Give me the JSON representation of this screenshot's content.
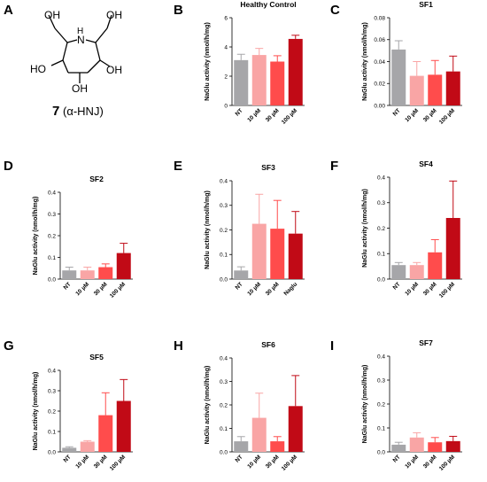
{
  "compound": {
    "panel_label": "A",
    "number": "7",
    "name_suffix": "(α-HNJ)",
    "atoms": {
      "oh1": "OH",
      "oh2": "OH",
      "n": "N",
      "h": "H",
      "oh3": "HO",
      "oh4": "OH",
      "oh5": "OH"
    }
  },
  "colors": {
    "nt": "#a6a6a9",
    "c10": "#f9a5a5",
    "c30": "#ff4c4c",
    "c100": "#c10a16"
  },
  "chart_data": [
    {
      "label": "B",
      "type": "bar",
      "title": "Healthy Control",
      "ylabel": "NaGlu activity (nmol/h/mg)",
      "ylim": [
        0,
        6
      ],
      "yticks": [
        "0",
        "2",
        "4",
        "6"
      ],
      "categories": [
        "NT",
        "10 µM",
        "30 µM",
        "100 µM"
      ],
      "values": [
        3.1,
        3.45,
        3.0,
        4.55
      ],
      "errors": [
        0.4,
        0.45,
        0.4,
        0.25
      ]
    },
    {
      "label": "C",
      "type": "bar",
      "title": "SF1",
      "ylabel": "NaGlu activity (nmol/h/mg)",
      "ylim": [
        0,
        0.08
      ],
      "yticks": [
        "0.00",
        "0.02",
        "0.04",
        "0.06",
        "0.08"
      ],
      "categories": [
        "NT",
        "10 µM",
        "30 µM",
        "100 µM"
      ],
      "values": [
        0.051,
        0.027,
        0.028,
        0.031
      ],
      "errors": [
        0.008,
        0.013,
        0.013,
        0.014
      ]
    },
    {
      "label": "D",
      "type": "bar",
      "title": "SF2",
      "ylabel": "NaGlu activity (nmol/h/mg)",
      "ylim": [
        0,
        0.4
      ],
      "yticks": [
        "0.0",
        "0.1",
        "0.2",
        "0.3",
        "0.4"
      ],
      "categories": [
        "NT",
        "10 µM",
        "30 µM",
        "100 µM"
      ],
      "values": [
        0.04,
        0.04,
        0.055,
        0.12
      ],
      "errors": [
        0.015,
        0.015,
        0.015,
        0.045
      ]
    },
    {
      "label": "E",
      "type": "bar",
      "title": "SF3",
      "ylabel": "NaGlu activity (nmol/h/mg)",
      "ylim": [
        0,
        0.4
      ],
      "yticks": [
        "0.0",
        "0.1",
        "0.2",
        "0.3",
        "0.4"
      ],
      "categories": [
        "NT",
        "10 µM",
        "30 µM",
        "Naglu"
      ],
      "values": [
        0.035,
        0.225,
        0.205,
        0.185
      ],
      "errors": [
        0.015,
        0.12,
        0.115,
        0.09
      ]
    },
    {
      "label": "F",
      "type": "bar",
      "title": "SF4",
      "ylabel": "NaGlu activity (nmol/h/mg)",
      "ylim": [
        0,
        0.4
      ],
      "yticks": [
        "0.0",
        "0.1",
        "0.2",
        "0.3",
        "0.4"
      ],
      "categories": [
        "NT",
        "10 µM",
        "30 µM",
        "100 µM"
      ],
      "values": [
        0.055,
        0.055,
        0.105,
        0.24
      ],
      "errors": [
        0.01,
        0.01,
        0.05,
        0.145
      ]
    },
    {
      "label": "G",
      "type": "bar",
      "title": "SF5",
      "ylabel": "NaGlu activity (nmol/h/mg)",
      "ylim": [
        0,
        0.4
      ],
      "yticks": [
        "0.0",
        "0.1",
        "0.2",
        "0.3",
        "0.4"
      ],
      "categories": [
        "NT",
        "10 µM",
        "30 µM",
        "100 µM"
      ],
      "values": [
        0.02,
        0.05,
        0.18,
        0.25
      ],
      "errors": [
        0.005,
        0.005,
        0.11,
        0.105
      ]
    },
    {
      "label": "H",
      "type": "bar",
      "title": "SF6",
      "ylabel": "NaGlu activity (nmol/h/mg)",
      "ylim": [
        0,
        0.4
      ],
      "yticks": [
        "0.0",
        "0.1",
        "0.2",
        "0.3",
        "0.4"
      ],
      "categories": [
        "NT",
        "10 µM",
        "30 µM",
        "100 µM"
      ],
      "values": [
        0.045,
        0.145,
        0.045,
        0.195
      ],
      "errors": [
        0.02,
        0.105,
        0.02,
        0.13
      ]
    },
    {
      "label": "I",
      "type": "bar",
      "title": "SF7",
      "ylabel": "NaGlu activity (nmol/h/mg)",
      "ylim": [
        0,
        0.4
      ],
      "yticks": [
        "0.0",
        "0.1",
        "0.2",
        "0.3",
        "0.4"
      ],
      "categories": [
        "NT",
        "10 µM",
        "30 µM",
        "100 µM"
      ],
      "values": [
        0.03,
        0.06,
        0.04,
        0.045
      ],
      "errors": [
        0.01,
        0.02,
        0.02,
        0.02
      ]
    }
  ]
}
